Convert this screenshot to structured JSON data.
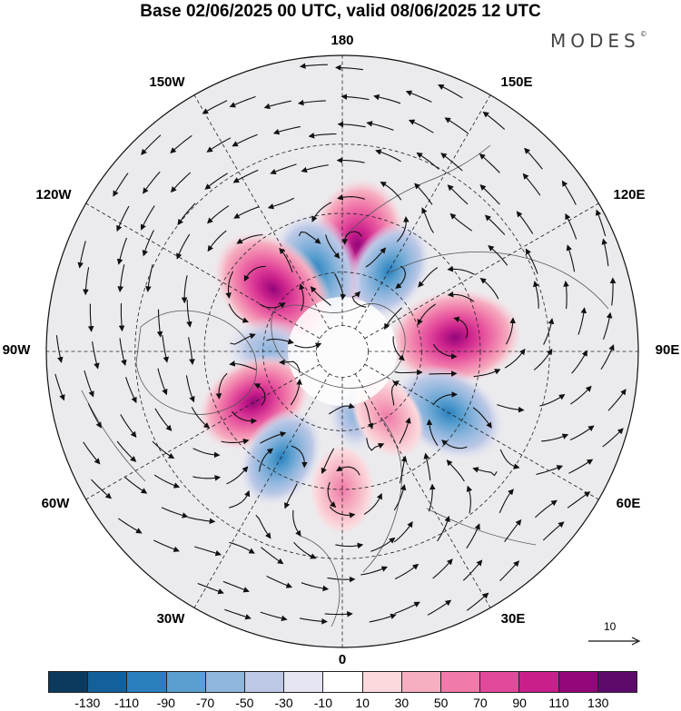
{
  "title": "Base 02/06/2025 00 UTC, valid 08/06/2025 12 UTC",
  "brand": "MODES",
  "brand_mark": "©",
  "longitude_labels": {
    "lon_180": "180",
    "lon_150E": "150E",
    "lon_120E": "120E",
    "lon_90E": "90E",
    "lon_60E": "60E",
    "lon_30E": "30E",
    "lon_0": "0",
    "lon_30W": "30W",
    "lon_60W": "60W",
    "lon_90W": "90W",
    "lon_120W": "120W",
    "lon_150W": "150W"
  },
  "vector_scale_label": "10",
  "colorbar": {
    "colors": [
      "#0c3a5e",
      "#14609a",
      "#2a80bf",
      "#5a9fcf",
      "#8fb6dd",
      "#bcc8e6",
      "#e5e5f3",
      "#ffffff",
      "#fbd9dd",
      "#f6aec0",
      "#f07aaa",
      "#e3499b",
      "#c81f8b",
      "#92077a",
      "#5e0a6c"
    ],
    "labels": [
      "-130",
      "-110",
      "-90",
      "-70",
      "-50",
      "-30",
      "-10",
      "10",
      "30",
      "50",
      "70",
      "90",
      "110",
      "130"
    ]
  },
  "anomaly_centers": [
    {
      "name": "north-pacific-positive-core",
      "lon": 172,
      "lat": 50,
      "value": 110,
      "sign": "positive"
    },
    {
      "name": "east-siberia-negative-core",
      "lon": 150,
      "lat": 55,
      "value": -70,
      "sign": "negative"
    },
    {
      "name": "alaska-negative-core",
      "lon": -162,
      "lat": 58,
      "value": -90,
      "sign": "negative"
    },
    {
      "name": "canada-positive-core",
      "lon": -132,
      "lat": 55,
      "value": 110,
      "sign": "positive"
    },
    {
      "name": "siberia-positive-core",
      "lon": 97,
      "lat": 48,
      "value": 110,
      "sign": "positive"
    },
    {
      "name": "kazakhstan-negative-core",
      "lon": 60,
      "lat": 45,
      "value": -90,
      "sign": "negative"
    },
    {
      "name": "hudson-negative-core",
      "lon": -92,
      "lat": 62,
      "value": -50,
      "sign": "negative"
    },
    {
      "name": "labrador-positive-core",
      "lon": -60,
      "lat": 52,
      "value": 90,
      "sign": "positive"
    },
    {
      "name": "atlantic-negative-core",
      "lon": -30,
      "lat": 45,
      "value": -70,
      "sign": "negative"
    },
    {
      "name": "iberia-positive-core",
      "lon": 0,
      "lat": 40,
      "value": 50,
      "sign": "positive"
    },
    {
      "name": "scandinavia-negative-core",
      "lon": 10,
      "lat": 65,
      "value": -30,
      "sign": "negative"
    },
    {
      "name": "russia-positive-core",
      "lon": 35,
      "lat": 60,
      "value": 50,
      "sign": "positive"
    }
  ]
}
